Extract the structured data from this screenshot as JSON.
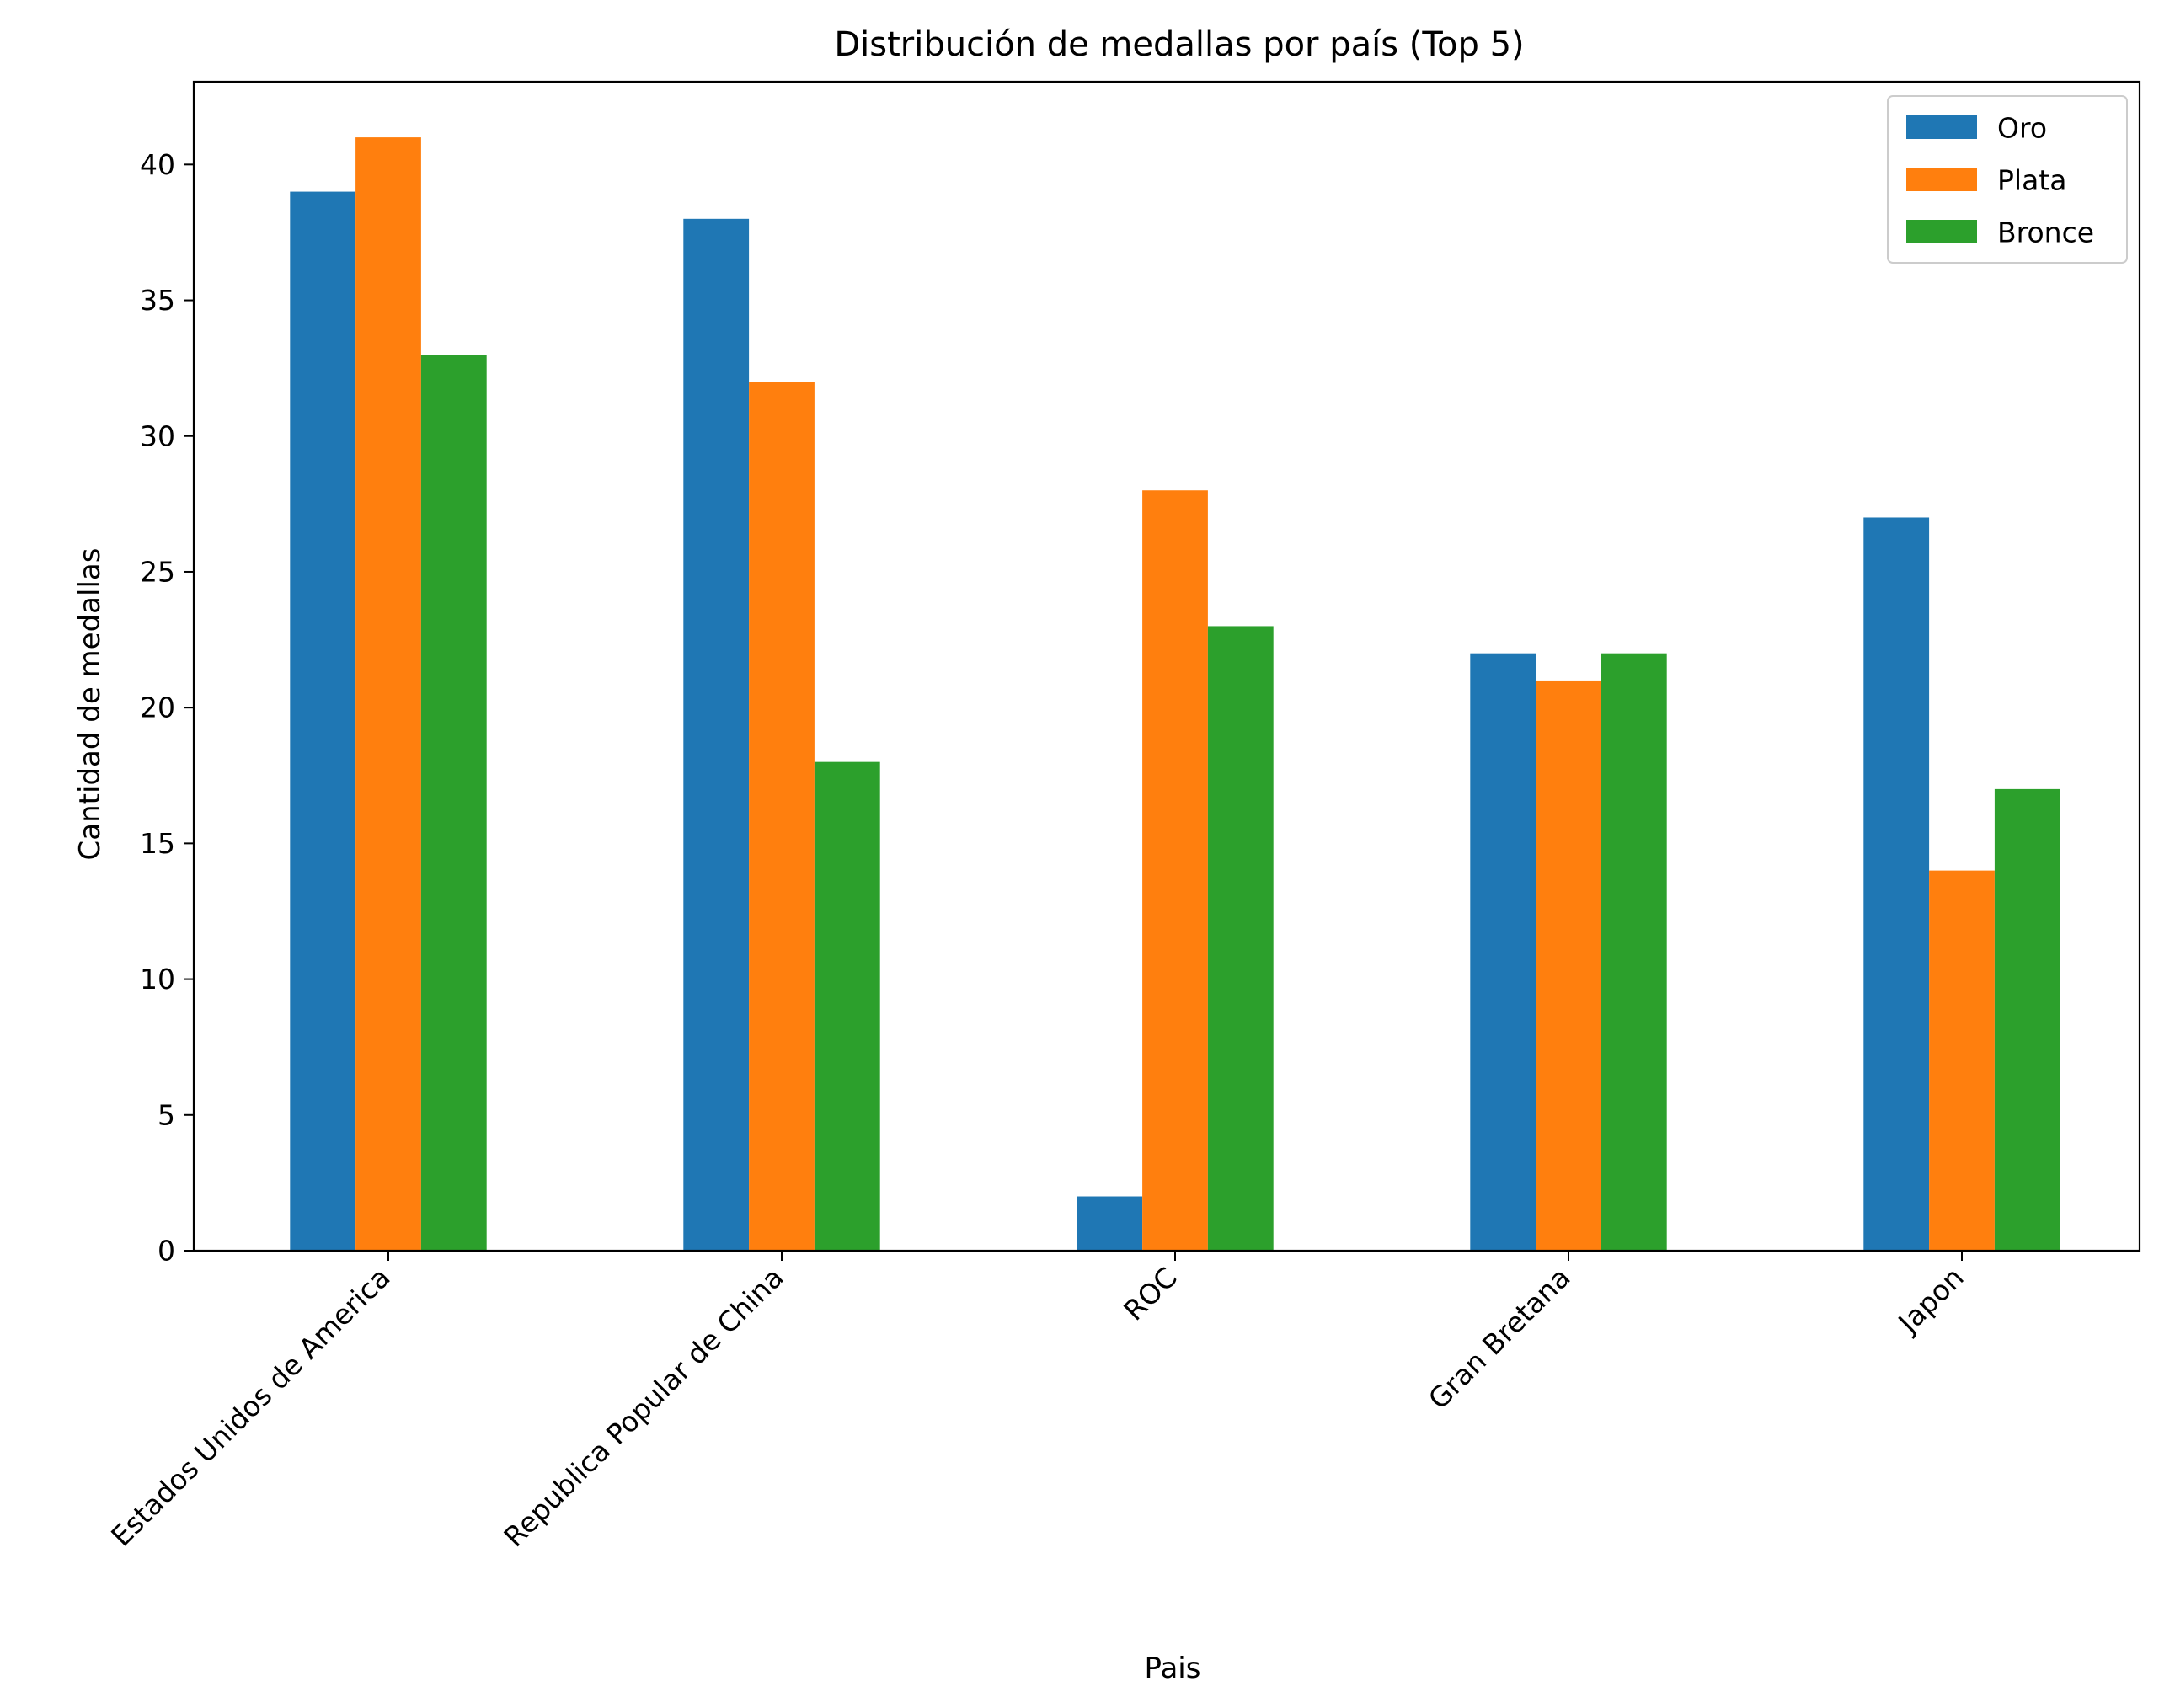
{
  "chart_data": {
    "type": "bar",
    "title": "Distribución de medallas por país (Top 5)",
    "xlabel": "Pais",
    "ylabel": "Cantidad de medallas",
    "categories": [
      "Estados Unidos de America",
      "Republica Popular de China",
      "ROC",
      "Gran Bretana",
      "Japon"
    ],
    "series": [
      {
        "name": "Oro",
        "color": "#1f77b4",
        "values": [
          39,
          38,
          2,
          22,
          27
        ]
      },
      {
        "name": "Plata",
        "color": "#ff7f0e",
        "values": [
          41,
          32,
          28,
          21,
          14
        ]
      },
      {
        "name": "Bronce",
        "color": "#2ca02c",
        "values": [
          33,
          18,
          23,
          22,
          17
        ]
      }
    ],
    "ylim": [
      0,
      43.05
    ],
    "yticks": [
      0,
      5,
      10,
      15,
      20,
      25,
      30,
      35,
      40
    ],
    "grid": false,
    "legend_position": "top-right"
  }
}
